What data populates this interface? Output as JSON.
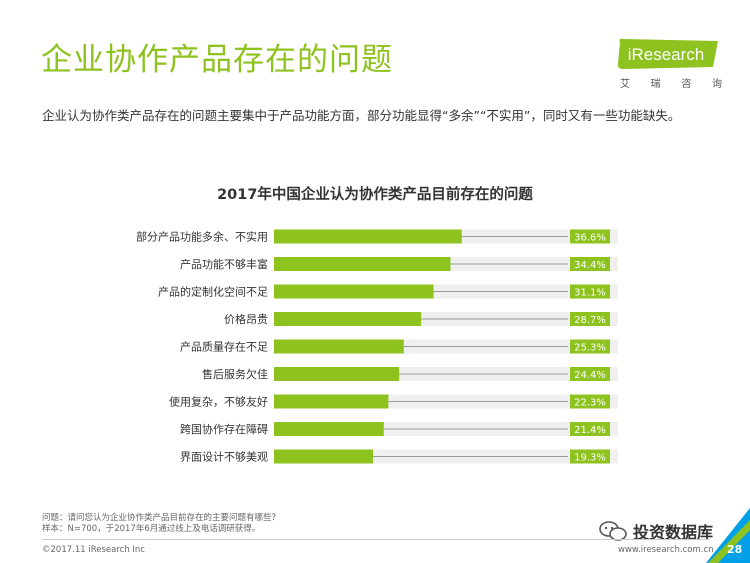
{
  "header": {
    "title": "企业协作产品存在的问题",
    "logo_text": "iResearch",
    "logo_sub": [
      "艾",
      "瑞",
      "咨",
      "询"
    ]
  },
  "summary": "企业认为协作类产品存在的问题主要集中于产品功能方面，部分功能显得“多余”“不实用”，同时又有一些功能缺失。",
  "chart_data": {
    "type": "bar",
    "orientation": "horizontal",
    "title": "2017年中国企业认为协作类产品目前存在的问题",
    "categories": [
      "部分产品功能多余、不实用",
      "产品功能不够丰富",
      "产品的定制化空间不足",
      "价格昂贵",
      "产品质量存在不足",
      "售后服务欠佳",
      "使用复杂，不够友好",
      "跨国协作存在障碍",
      "界面设计不够美观"
    ],
    "values": [
      36.6,
      34.4,
      31.1,
      28.7,
      25.3,
      24.4,
      22.3,
      21.4,
      19.3
    ],
    "labels": [
      "36.6%",
      "34.4%",
      "31.1%",
      "28.7%",
      "25.3%",
      "24.4%",
      "22.3%",
      "21.4%",
      "19.3%"
    ],
    "unit": "%",
    "xlim": [
      0,
      60
    ],
    "bar_color": "#8dc21f",
    "track_color": "#efefef"
  },
  "footer": {
    "question": "问题：请问您认为企业协作类产品目前存在的主要问题有哪些？",
    "sample": "样本：N=700，于2017年6月通过线上及电话调研获得。",
    "copyright": "©2017.11 iResearch Inc",
    "website": "www.iresearch.com.cn",
    "page_number": "28",
    "watermark": "投资数据库"
  },
  "colors": {
    "accent": "#8dc21f",
    "corner": "#00a0e9"
  }
}
